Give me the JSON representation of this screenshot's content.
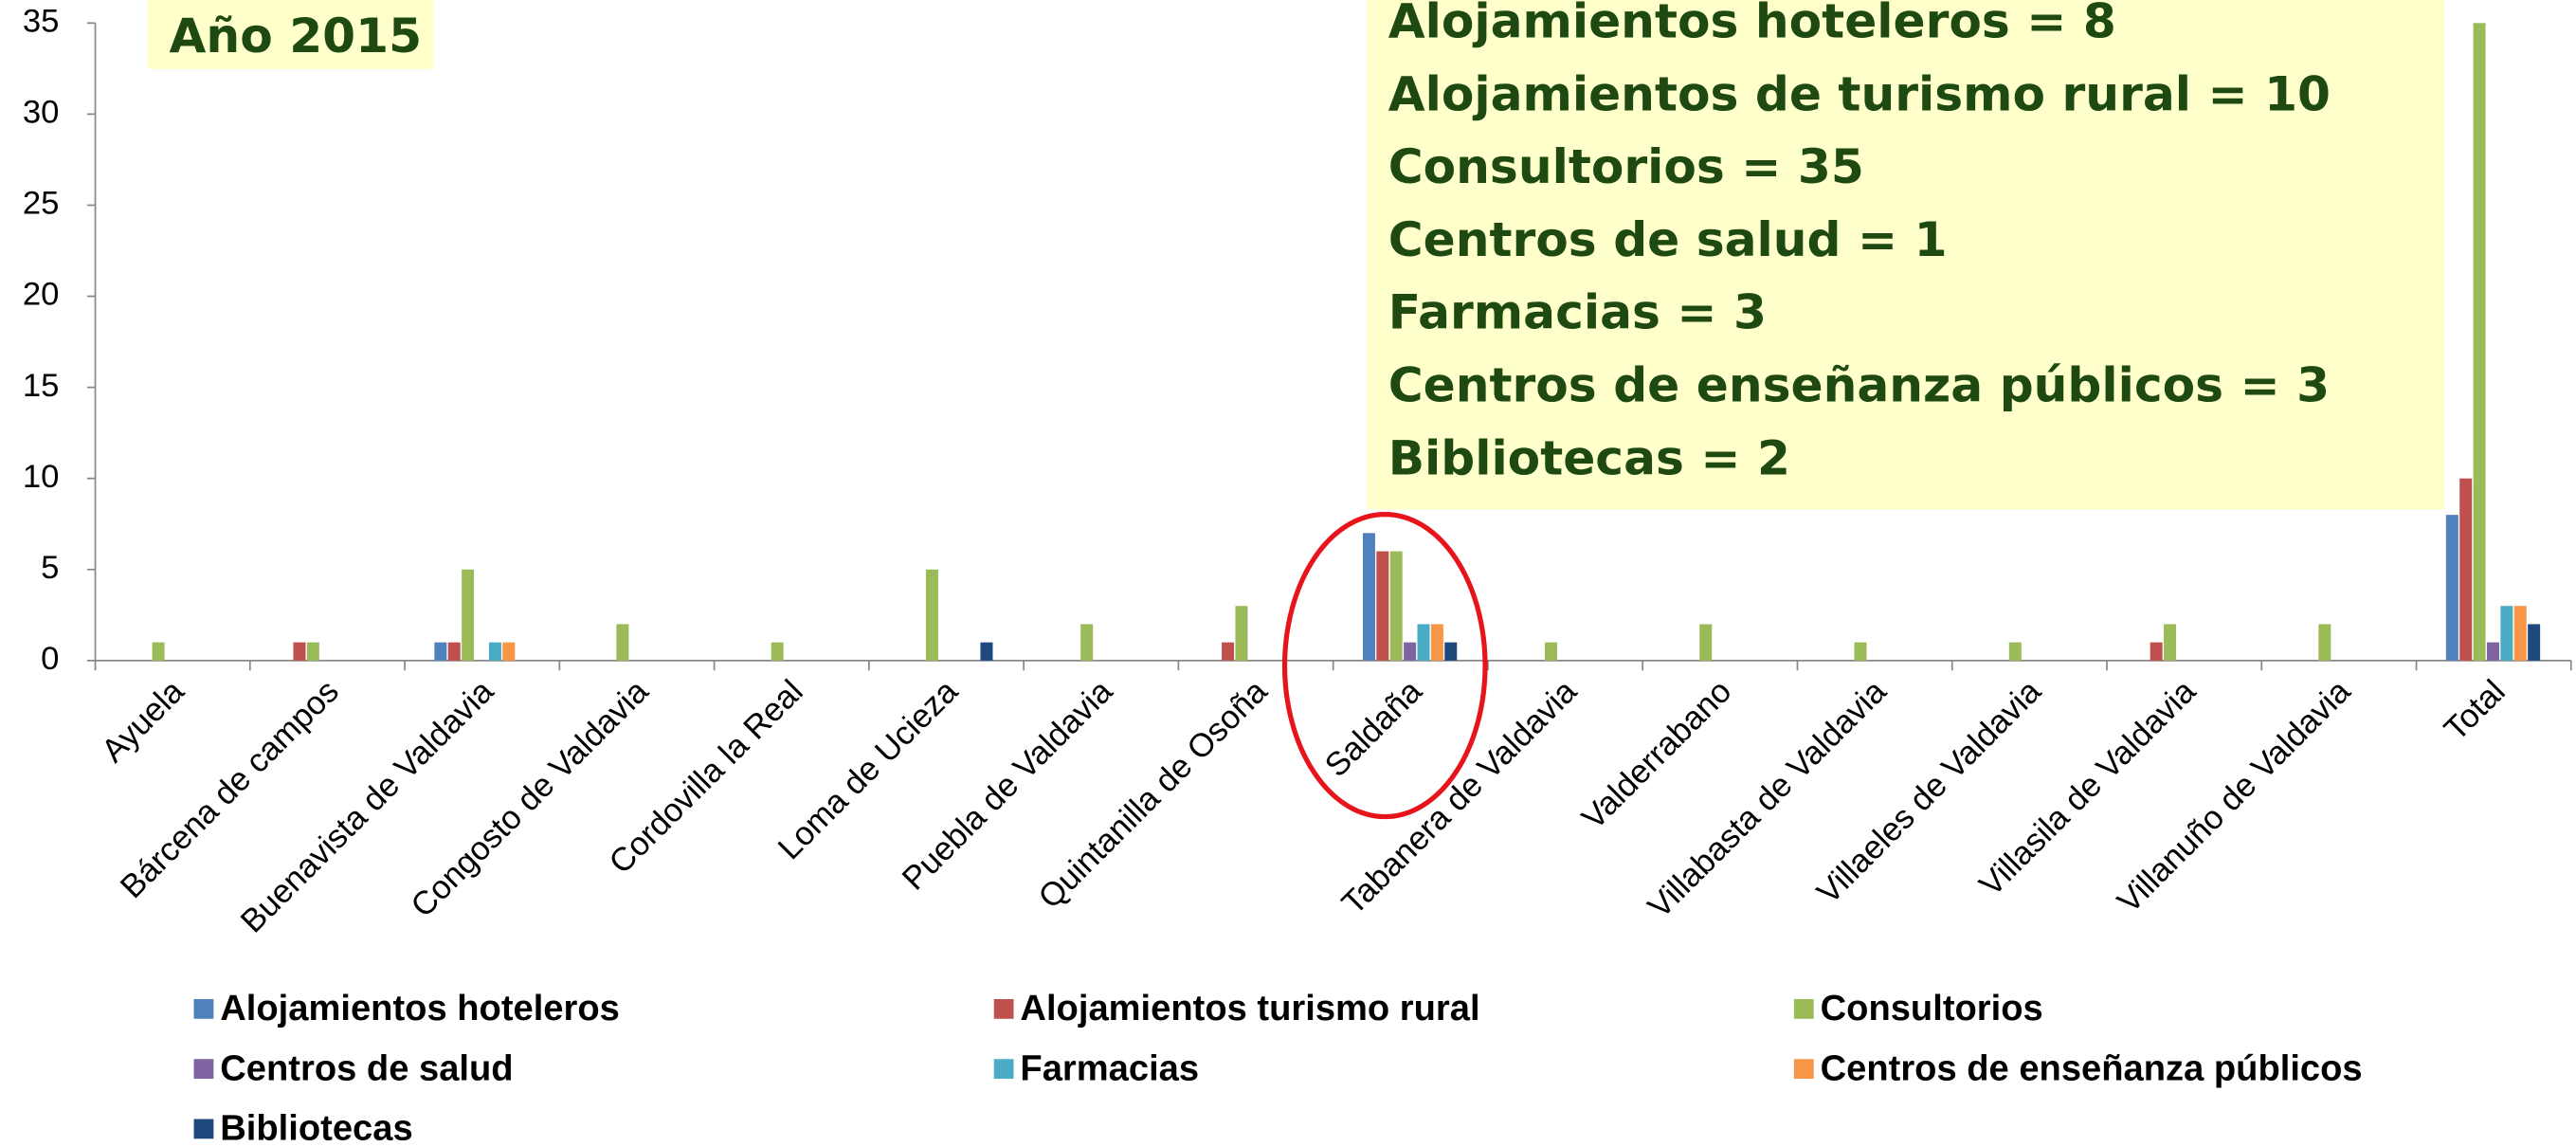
{
  "chart_data": {
    "type": "bar",
    "categories": [
      "Ayuela",
      "Bárcena de campos",
      "Buenavista de Valdavia",
      "Congosto de Valdavia",
      "Cordovilla la Real",
      "Loma de Ucieza",
      "Puebla de Valdavia",
      "Quintanilla de Osoña",
      "Saldaña",
      "Tabanera de Valdavia",
      "Valderrabano",
      "Villabasta de Valdavia",
      "Villaeles de Valdavia",
      "Villasila de Valdavia",
      "Villanuño de Valdavia",
      "Total"
    ],
    "series": [
      {
        "name": "Alojamientos hoteleros",
        "color": "#4f81bd",
        "values": [
          0,
          0,
          1,
          0,
          0,
          0,
          0,
          0,
          7,
          0,
          0,
          0,
          0,
          0,
          0,
          8
        ]
      },
      {
        "name": "Alojamientos turismo rural",
        "color": "#c0504d",
        "values": [
          0,
          1,
          1,
          0,
          0,
          0,
          0,
          1,
          6,
          0,
          0,
          0,
          0,
          1,
          0,
          10
        ]
      },
      {
        "name": "Consultorios",
        "color": "#9bbb59",
        "values": [
          1,
          1,
          5,
          2,
          1,
          5,
          2,
          3,
          6,
          1,
          2,
          1,
          1,
          2,
          2,
          35
        ]
      },
      {
        "name": "Centros de salud",
        "color": "#8064a2",
        "values": [
          0,
          0,
          0,
          0,
          0,
          0,
          0,
          0,
          1,
          0,
          0,
          0,
          0,
          0,
          0,
          1
        ]
      },
      {
        "name": "Farmacias",
        "color": "#4bacc6",
        "values": [
          0,
          0,
          1,
          0,
          0,
          0,
          0,
          0,
          2,
          0,
          0,
          0,
          0,
          0,
          0,
          3
        ]
      },
      {
        "name": "Centros de enseñanza públicos",
        "color": "#f79646",
        "values": [
          0,
          0,
          1,
          0,
          0,
          0,
          0,
          0,
          2,
          0,
          0,
          0,
          0,
          0,
          0,
          3
        ]
      },
      {
        "name": "Bibliotecas",
        "color": "#1f497d",
        "values": [
          0,
          0,
          0,
          0,
          0,
          1,
          0,
          0,
          1,
          0,
          0,
          0,
          0,
          0,
          0,
          2
        ]
      }
    ],
    "ylim": [
      0,
      35
    ],
    "yticks": [
      0,
      5,
      10,
      15,
      20,
      25,
      30,
      35
    ],
    "annotations": {
      "year": "Año 2015",
      "lines": [
        "Alojamientos hoteleros = 8",
        "Alojamientos de turismo rural = 10",
        "Consultorios = 35",
        "Centros de salud = 1",
        "Farmacias = 3",
        "Centros de enseñanza públicos = 3",
        "Bibliotecas = 2"
      ]
    }
  }
}
